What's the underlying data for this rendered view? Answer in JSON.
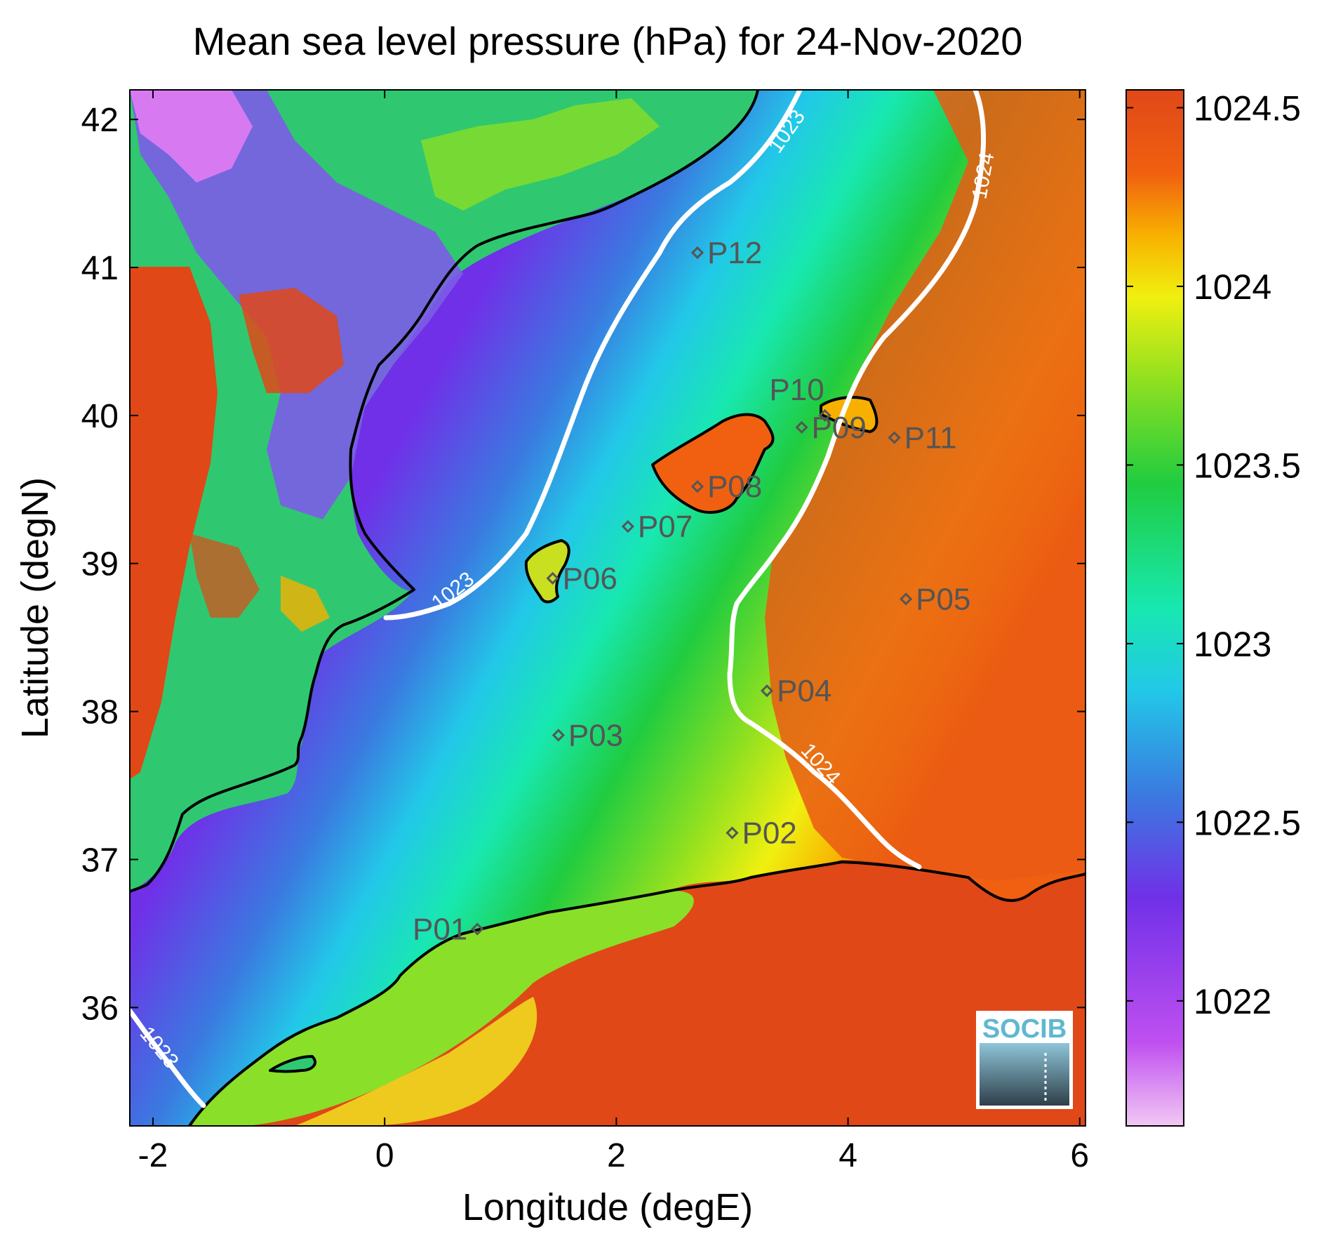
{
  "title": "Mean sea level pressure (hPa) for 24-Nov-2020",
  "xlabel": "Longitude (degE)",
  "ylabel": "Latitude (degN)",
  "x_ticks": [
    "-2",
    "0",
    "2",
    "4",
    "6"
  ],
  "y_ticks": [
    "42",
    "41",
    "40",
    "39",
    "38",
    "37",
    "36"
  ],
  "colorbar": {
    "ticks": [
      "1024.5",
      "1024",
      "1023.5",
      "1023",
      "1022.5",
      "1022"
    ],
    "range": [
      1021.65,
      1024.55
    ],
    "colors": [
      "#f2c8f4",
      "#c050f0",
      "#7030e8",
      "#3a7ae0",
      "#22c8e8",
      "#18e8b0",
      "#20cc40",
      "#90e020",
      "#f0f010",
      "#f8b000",
      "#f06010",
      "#e04818"
    ]
  },
  "contour_labels": [
    "1023",
    "1023",
    "1023",
    "1024",
    "1024"
  ],
  "points": [
    {
      "label": "P01",
      "lon": 0.8,
      "lat": 36.53
    },
    {
      "label": "P02",
      "lon": 3.0,
      "lat": 37.18
    },
    {
      "label": "P03",
      "lon": 1.5,
      "lat": 37.84
    },
    {
      "label": "P04",
      "lon": 3.3,
      "lat": 38.14
    },
    {
      "label": "P05",
      "lon": 4.5,
      "lat": 38.76
    },
    {
      "label": "P06",
      "lon": 1.45,
      "lat": 38.9
    },
    {
      "label": "P07",
      "lon": 2.1,
      "lat": 39.25
    },
    {
      "label": "P08",
      "lon": 2.7,
      "lat": 39.52
    },
    {
      "label": "P09",
      "lon": 3.6,
      "lat": 39.92
    },
    {
      "label": "P10",
      "lon": 3.8,
      "lat": 40.0
    },
    {
      "label": "P11",
      "lon": 4.4,
      "lat": 39.85
    },
    {
      "label": "P12",
      "lon": 2.7,
      "lat": 41.1
    }
  ],
  "logo_text": "SOCIB",
  "chart_data": {
    "type": "heatmap",
    "title": "Mean sea level pressure (hPa) for 24-Nov-2020",
    "xlabel": "Longitude (degE)",
    "ylabel": "Latitude (degN)",
    "xlim": [
      -2.2,
      6.05
    ],
    "ylim": [
      35.2,
      42.2
    ],
    "clim": [
      1021.65,
      1024.55
    ],
    "contours": [
      1023,
      1024
    ]
  }
}
